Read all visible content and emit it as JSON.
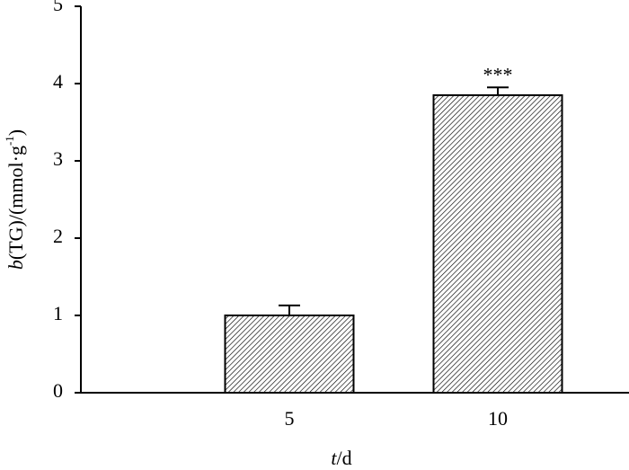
{
  "chart_data": {
    "type": "bar",
    "categories": [
      "5",
      "10"
    ],
    "values": [
      1.0,
      3.85
    ],
    "errors": [
      0.13,
      0.1
    ],
    "annotations": [
      null,
      "***"
    ],
    "color": "#000000",
    "ylim": [
      0,
      5
    ],
    "yticks": [
      0,
      1,
      2,
      3,
      4,
      5
    ],
    "grid": false,
    "x_label": {
      "italic": "t",
      "rest": "/d"
    },
    "y_label": {
      "italic": "b",
      "rest": "(TG)/(mmol·g",
      "sup": "-1",
      "end": ")"
    }
  }
}
